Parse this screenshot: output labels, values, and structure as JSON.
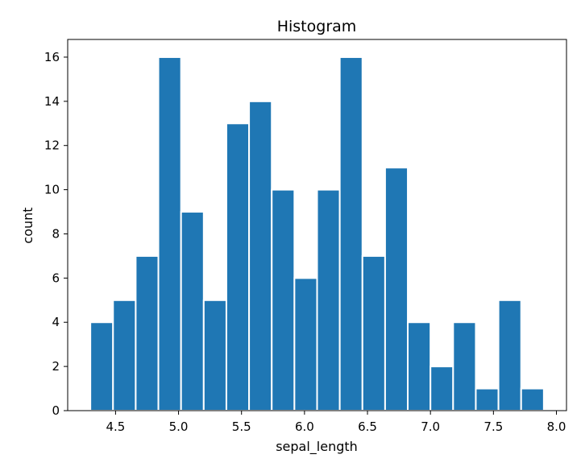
{
  "chart_data": {
    "type": "bar",
    "title": "Histogram",
    "xlabel": "sepal_length",
    "ylabel": "count",
    "bar_color": "#1f77b4",
    "bin_edges": [
      4.3,
      4.48,
      4.66,
      4.84,
      5.02,
      5.2,
      5.38,
      5.56,
      5.74,
      5.92,
      6.1,
      6.28,
      6.46,
      6.64,
      6.82,
      7.0,
      7.18,
      7.36,
      7.54,
      7.72,
      7.9
    ],
    "values": [
      4,
      5,
      7,
      16,
      9,
      5,
      13,
      14,
      10,
      6,
      10,
      16,
      7,
      11,
      4,
      2,
      4,
      1,
      5,
      1
    ],
    "xlim": [
      4.12,
      8.08
    ],
    "ylim": [
      0,
      16.8
    ],
    "xticks": [
      "4.5",
      "5.0",
      "5.5",
      "6.0",
      "6.5",
      "7.0",
      "7.5",
      "8.0"
    ],
    "yticks": [
      "0",
      "2",
      "4",
      "6",
      "8",
      "10",
      "12",
      "14",
      "16"
    ],
    "grid": false,
    "legend": "none"
  }
}
